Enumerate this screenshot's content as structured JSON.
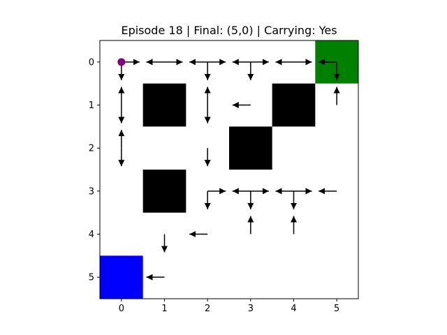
{
  "title": "Episode 18 | Final: (5,0) | Carrying: Yes",
  "grid": {
    "rows": 6,
    "cols": 6,
    "x_ticks": [
      "0",
      "1",
      "2",
      "3",
      "4",
      "5"
    ],
    "y_ticks": [
      "0",
      "1",
      "2",
      "3",
      "4",
      "5"
    ]
  },
  "colors": {
    "goal": "#008000",
    "start": "#0000ff",
    "wall": "#000000",
    "agent": "#800080",
    "arrow": "#000000"
  },
  "cells": {
    "goal": [
      {
        "x": 5,
        "y": 0
      }
    ],
    "start": [
      {
        "x": 0,
        "y": 5
      }
    ],
    "walls": [
      {
        "x": 1,
        "y": 1
      },
      {
        "x": 4,
        "y": 1
      },
      {
        "x": 3,
        "y": 2
      },
      {
        "x": 1,
        "y": 3
      }
    ]
  },
  "agent": {
    "x": 0,
    "y": 0
  },
  "arrows": [
    {
      "x": 0,
      "y": 0,
      "dir": "right"
    },
    {
      "x": 0,
      "y": 0,
      "dir": "down"
    },
    {
      "x": 1,
      "y": 0,
      "dir": "left"
    },
    {
      "x": 1,
      "y": 0,
      "dir": "right"
    },
    {
      "x": 2,
      "y": 0,
      "dir": "left"
    },
    {
      "x": 2,
      "y": 0,
      "dir": "right"
    },
    {
      "x": 2,
      "y": 0,
      "dir": "down"
    },
    {
      "x": 3,
      "y": 0,
      "dir": "left"
    },
    {
      "x": 3,
      "y": 0,
      "dir": "right"
    },
    {
      "x": 3,
      "y": 0,
      "dir": "down"
    },
    {
      "x": 4,
      "y": 0,
      "dir": "left"
    },
    {
      "x": 4,
      "y": 0,
      "dir": "right"
    },
    {
      "x": 5,
      "y": 0,
      "dir": "left"
    },
    {
      "x": 5,
      "y": 0,
      "dir": "down"
    },
    {
      "x": 0,
      "y": 1,
      "dir": "up"
    },
    {
      "x": 0,
      "y": 1,
      "dir": "down"
    },
    {
      "x": 2,
      "y": 1,
      "dir": "up"
    },
    {
      "x": 2,
      "y": 1,
      "dir": "down"
    },
    {
      "x": 3,
      "y": 1,
      "dir": "left"
    },
    {
      "x": 5,
      "y": 1,
      "dir": "up"
    },
    {
      "x": 0,
      "y": 2,
      "dir": "up"
    },
    {
      "x": 0,
      "y": 2,
      "dir": "down"
    },
    {
      "x": 2,
      "y": 2,
      "dir": "down"
    },
    {
      "x": 2,
      "y": 3,
      "dir": "right"
    },
    {
      "x": 2,
      "y": 3,
      "dir": "down"
    },
    {
      "x": 3,
      "y": 3,
      "dir": "left"
    },
    {
      "x": 3,
      "y": 3,
      "dir": "right"
    },
    {
      "x": 3,
      "y": 3,
      "dir": "down"
    },
    {
      "x": 4,
      "y": 3,
      "dir": "left"
    },
    {
      "x": 4,
      "y": 3,
      "dir": "right"
    },
    {
      "x": 4,
      "y": 3,
      "dir": "down"
    },
    {
      "x": 5,
      "y": 3,
      "dir": "left"
    },
    {
      "x": 2,
      "y": 4,
      "dir": "left"
    },
    {
      "x": 3,
      "y": 4,
      "dir": "up"
    },
    {
      "x": 4,
      "y": 4,
      "dir": "up"
    },
    {
      "x": 1,
      "y": 4,
      "dir": "down"
    },
    {
      "x": 1,
      "y": 5,
      "dir": "left"
    }
  ]
}
